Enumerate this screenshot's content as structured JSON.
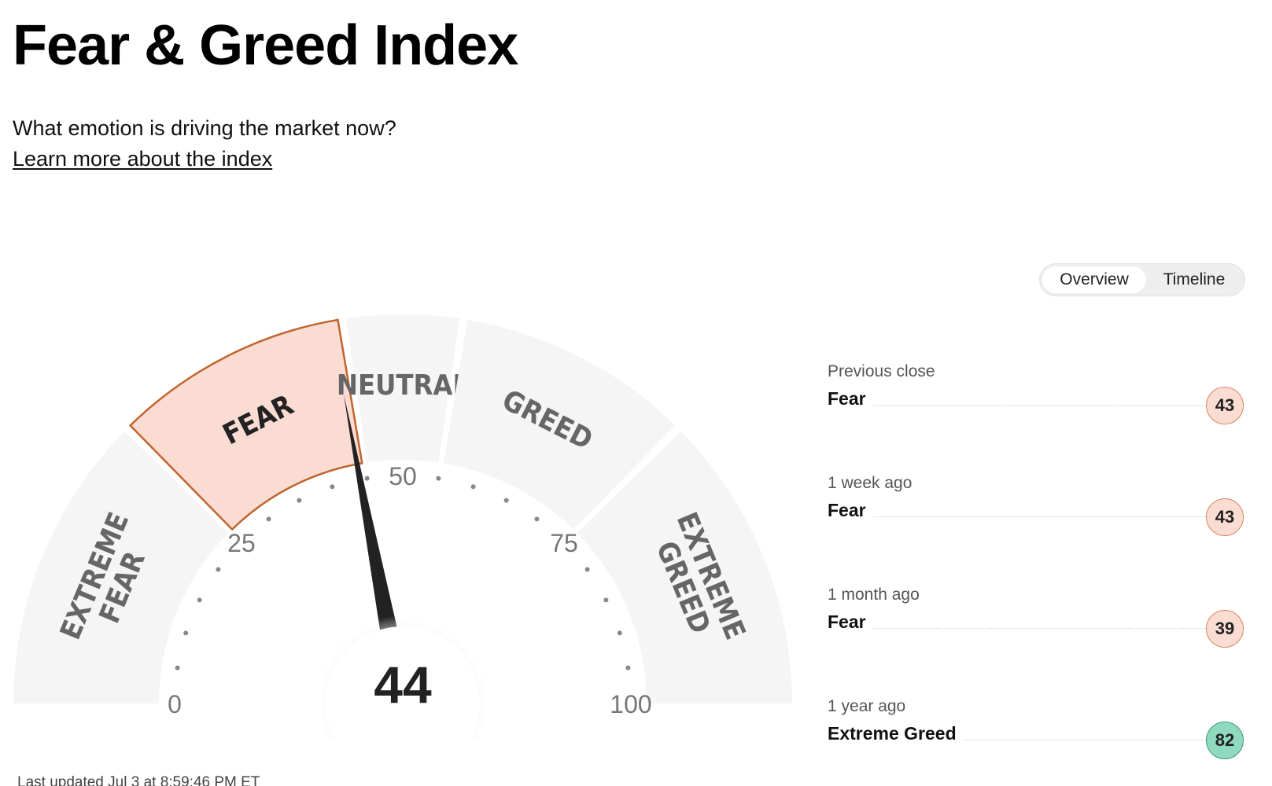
{
  "header": {
    "title": "Fear & Greed Index",
    "subtitle": "What emotion is driving the market now?",
    "learn_link": "Learn more about the index"
  },
  "view_toggle": {
    "options": [
      "Overview",
      "Timeline"
    ],
    "selected": "Overview"
  },
  "gauge": {
    "value": 44,
    "value_label": "44",
    "segments": [
      {
        "lines": [
          "EXTREME",
          "FEAR"
        ],
        "from": 0,
        "to": 25
      },
      {
        "lines": [
          "FEAR"
        ],
        "from": 25,
        "to": 45,
        "active": true
      },
      {
        "lines": [
          "NEUTRAL"
        ],
        "from": 45,
        "to": 55
      },
      {
        "lines": [
          "GREED"
        ],
        "from": 55,
        "to": 75
      },
      {
        "lines": [
          "EXTREME",
          "GREED"
        ],
        "from": 75,
        "to": 100
      }
    ],
    "tick_labels": [
      "0",
      "25",
      "50",
      "75",
      "100"
    ],
    "colors": {
      "segment": "#f5f5f5",
      "active_fill": "#fbdcd2",
      "active_stroke": "#c0652e",
      "needle": "#222222",
      "label": "#666666"
    }
  },
  "history": [
    {
      "period": "Previous close",
      "rating": "Fear",
      "value": "43",
      "tone": "fear"
    },
    {
      "period": "1 week ago",
      "rating": "Fear",
      "value": "43",
      "tone": "fear"
    },
    {
      "period": "1 month ago",
      "rating": "Fear",
      "value": "39",
      "tone": "fear"
    },
    {
      "period": "1 year ago",
      "rating": "Extreme Greed",
      "value": "82",
      "tone": "xgreed"
    }
  ],
  "last_updated": "Last updated Jul 3 at 8:59:46 PM ET"
}
